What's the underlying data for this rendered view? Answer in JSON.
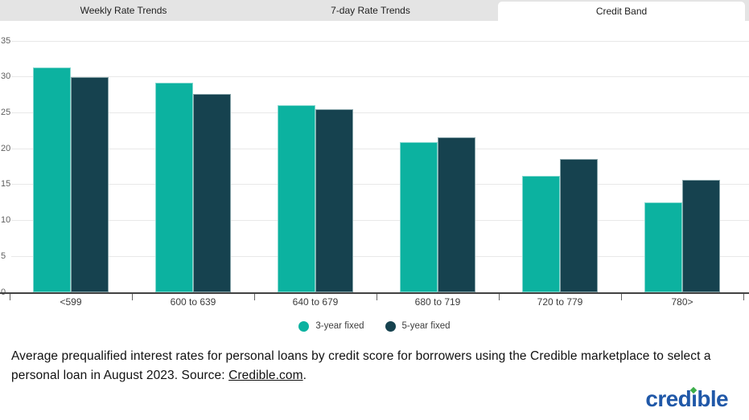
{
  "tabs": [
    {
      "label": "Weekly Rate Trends",
      "active": false
    },
    {
      "label": "7-day Rate Trends",
      "active": false
    },
    {
      "label": "Credit Band",
      "active": true
    }
  ],
  "chart_data": {
    "type": "bar",
    "categories": [
      "<599",
      "600 to 639",
      "640 to 679",
      "680 to 719",
      "720 to 779",
      "780>"
    ],
    "series": [
      {
        "name": "3-year fixed",
        "color": "#0cb2a0",
        "values": [
          31.3,
          29.2,
          26.0,
          20.9,
          16.2,
          12.5
        ]
      },
      {
        "name": "5-year fixed",
        "color": "#16424f",
        "values": [
          30.0,
          27.6,
          25.5,
          21.6,
          18.6,
          15.7
        ]
      }
    ],
    "title": "",
    "xlabel": "",
    "ylabel": "",
    "ylim": [
      0,
      35
    ],
    "ytick_step": 5,
    "grid": true,
    "legend_position": "bottom"
  },
  "caption": {
    "before_link": "Average prequalified interest rates for personal loans by credit score for borrowers using the Credible marketplace to select a personal loan in August 2023. Source: ",
    "link_text": "Credible.com",
    "after_link": "."
  },
  "logo": {
    "pre": "cred",
    "i": "ı",
    "post": "ble"
  },
  "colors": {
    "tab_bar_bg": "#e4e4e4",
    "active_tab_bg": "#ffffff",
    "gridline": "#e8e8e8",
    "axis_line": "#424242",
    "series_teal": "#0cb2a0",
    "series_dark": "#16424f",
    "logo_blue": "#2058a8",
    "logo_green": "#3cae49"
  }
}
